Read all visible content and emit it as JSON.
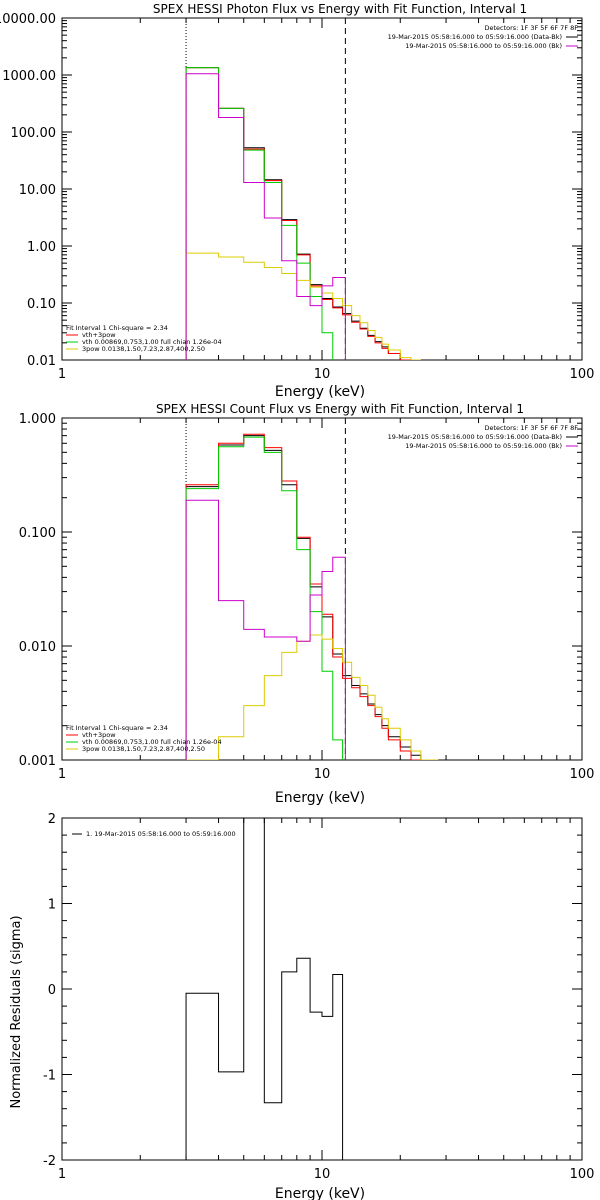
{
  "chart_data": [
    {
      "type": "line",
      "title": "SPEX HESSI Photon Flux vs Energy with Fit Function, Interval 1",
      "xlabel": "Energy (keV)",
      "ylabel": "",
      "xscale": "log",
      "yscale": "log",
      "xlim": [
        1,
        100
      ],
      "ylim": [
        0.01,
        10000
      ],
      "x_ticks": [
        {
          "value": 1,
          "label": "1"
        },
        {
          "value": 10,
          "label": "10"
        },
        {
          "value": 100,
          "label": "100"
        }
      ],
      "y_ticks": [
        {
          "value": 0.01,
          "label": "0.01"
        },
        {
          "value": 0.1,
          "label": "0.10"
        },
        {
          "value": 1,
          "label": "1.00"
        },
        {
          "value": 10,
          "label": "10.00"
        },
        {
          "value": 100,
          "label": "100.00"
        },
        {
          "value": 1000,
          "label": "1000.00"
        },
        {
          "value": 10000,
          "label": "10000.00"
        }
      ],
      "vlines": [
        {
          "x": 3,
          "style": "dotted"
        },
        {
          "x": 12.3,
          "style": "dashed"
        }
      ],
      "legend_top": {
        "header": "Detectors: 1F 3F 5F 6F 7F 8F",
        "items": [
          {
            "text": "19-Mar-2015 05:58:16.000 to 05:59:16.000 (Data-Bk)",
            "color": "#000000"
          },
          {
            "text": "19-Mar-2015 05:58:16.000 to 05:59:16.000 (Bk)",
            "color": "#cc00cc"
          }
        ]
      },
      "legend_bottom": {
        "header": "Fit Interval 1   Chi-square = 2.34",
        "items": [
          {
            "text": "vth+3pow",
            "color": "#ff0000"
          },
          {
            "text": "vth 0.00869,0.753,1.00  full chian 1.26e-04",
            "color": "#00cc00"
          },
          {
            "text": "3pow 0.0138,1.50,7.23,2.87,400,2.50",
            "color": "#ddcc00"
          }
        ]
      },
      "series": [
        {
          "color": "#000000",
          "edges": [
            3,
            4,
            5,
            6,
            7,
            8,
            9,
            10,
            11,
            12,
            13,
            14,
            15,
            16,
            17,
            18,
            20,
            22,
            24
          ],
          "values": [
            1350,
            260,
            53,
            14.5,
            2.9,
            0.72,
            0.21,
            0.12,
            0.085,
            0.065,
            0.048,
            0.036,
            0.027,
            0.021,
            0.017,
            0.013,
            0.01,
            0.01
          ]
        },
        {
          "color": "#ff0000",
          "edges": [
            3,
            4,
            5,
            6,
            7,
            8,
            9,
            10,
            11,
            12,
            13,
            14,
            15,
            16,
            17,
            18,
            20,
            22,
            24
          ],
          "values": [
            1350,
            260,
            50,
            14,
            2.8,
            0.7,
            0.2,
            0.115,
            0.082,
            0.062,
            0.046,
            0.035,
            0.026,
            0.02,
            0.016,
            0.013,
            0.01,
            0.01
          ]
        },
        {
          "color": "#00cc00",
          "edges": [
            3,
            4,
            5,
            6,
            7,
            8,
            9,
            10,
            11
          ],
          "values": [
            1350,
            260,
            48,
            13,
            2.3,
            0.5,
            0.13,
            0.03
          ]
        },
        {
          "color": "#ddcc00",
          "edges": [
            3,
            4,
            5,
            6,
            7,
            8,
            9,
            10,
            11,
            12,
            13,
            14,
            15,
            16,
            17,
            18,
            20,
            22,
            24
          ],
          "values": [
            0.75,
            0.64,
            0.52,
            0.42,
            0.33,
            0.25,
            0.19,
            0.15,
            0.12,
            0.09,
            0.06,
            0.045,
            0.033,
            0.025,
            0.019,
            0.015,
            0.011,
            0.01
          ]
        },
        {
          "color": "#cc00cc",
          "edges": [
            3,
            4,
            5,
            6,
            7,
            8,
            9,
            10,
            11,
            12.3
          ],
          "values": [
            1050,
            180,
            13,
            3.1,
            0.55,
            0.13,
            0.09,
            0.2,
            0.28
          ]
        }
      ]
    },
    {
      "type": "line",
      "title": "SPEX HESSI Count Flux vs Energy with Fit Function, Interval 1",
      "xlabel": "Energy (keV)",
      "ylabel": "",
      "xscale": "log",
      "yscale": "log",
      "xlim": [
        1,
        100
      ],
      "ylim": [
        0.001,
        1
      ],
      "x_ticks": [
        {
          "value": 1,
          "label": "1"
        },
        {
          "value": 10,
          "label": "10"
        },
        {
          "value": 100,
          "label": "100"
        }
      ],
      "y_ticks": [
        {
          "value": 0.001,
          "label": "0.001"
        },
        {
          "value": 0.01,
          "label": "0.010"
        },
        {
          "value": 0.1,
          "label": "0.100"
        },
        {
          "value": 1,
          "label": "1.000"
        }
      ],
      "vlines": [
        {
          "x": 3,
          "style": "dotted"
        },
        {
          "x": 12.3,
          "style": "dashed"
        }
      ],
      "legend_top": {
        "header": "Detectors: 1F 3F 5F 6F 7F 8F",
        "items": [
          {
            "text": "19-Mar-2015 05:58:16.000 to 05:59:16.000 (Data-Bk)",
            "color": "#000000"
          },
          {
            "text": "19-Mar-2015 05:58:16.000 to 05:59:16.000 (Bk)",
            "color": "#cc00cc"
          }
        ]
      },
      "legend_bottom": {
        "header": "Fit Interval 1   Chi-square = 2.34",
        "items": [
          {
            "text": "vth+3pow",
            "color": "#ff0000"
          },
          {
            "text": "vth 0.00869,0.753,1.00  full chian 1.26e-04",
            "color": "#00cc00"
          },
          {
            "text": "3pow 0.0138,1.50,7.23,2.87,400,2.50",
            "color": "#ddcc00"
          }
        ]
      },
      "series": [
        {
          "color": "#000000",
          "edges": [
            3,
            4,
            5,
            6,
            7,
            8,
            9,
            10,
            11,
            12,
            13,
            14,
            15,
            16,
            17,
            18,
            20,
            22,
            24,
            26,
            28
          ],
          "values": [
            0.25,
            0.58,
            0.7,
            0.52,
            0.26,
            0.088,
            0.033,
            0.018,
            0.0085,
            0.0055,
            0.0045,
            0.0038,
            0.0031,
            0.0025,
            0.002,
            0.0016,
            0.0013,
            0.0011,
            0.001,
            0.001
          ]
        },
        {
          "color": "#ff0000",
          "edges": [
            3,
            4,
            5,
            6,
            7,
            8,
            9,
            10,
            11,
            12,
            13,
            14,
            15,
            16,
            17,
            18,
            20,
            22,
            24,
            26,
            28
          ],
          "values": [
            0.26,
            0.6,
            0.72,
            0.55,
            0.28,
            0.09,
            0.035,
            0.019,
            0.008,
            0.0052,
            0.0043,
            0.0036,
            0.003,
            0.0024,
            0.0019,
            0.0015,
            0.0012,
            0.001,
            0.001,
            0.001
          ]
        },
        {
          "color": "#00cc00",
          "edges": [
            3,
            4,
            5,
            6,
            7,
            8,
            9,
            10,
            11,
            12
          ],
          "values": [
            0.24,
            0.56,
            0.68,
            0.5,
            0.23,
            0.07,
            0.02,
            0.006,
            0.0015
          ]
        },
        {
          "color": "#ddcc00",
          "edges": [
            3,
            4,
            5,
            6,
            7,
            8,
            9,
            10,
            11,
            12,
            13,
            14,
            15,
            16,
            17,
            18,
            20,
            22,
            24,
            26,
            28
          ],
          "values": [
            0.001,
            0.0016,
            0.003,
            0.0055,
            0.0088,
            0.011,
            0.0125,
            0.0115,
            0.0095,
            0.0072,
            0.0053,
            0.0045,
            0.0037,
            0.0029,
            0.0023,
            0.0019,
            0.0015,
            0.0012,
            0.001,
            0.001
          ]
        },
        {
          "color": "#cc00cc",
          "edges": [
            3,
            4,
            5,
            6,
            7,
            8,
            9,
            10,
            11,
            12.3
          ],
          "values": [
            0.19,
            0.025,
            0.014,
            0.012,
            0.012,
            0.011,
            0.028,
            0.045,
            0.06
          ]
        }
      ]
    },
    {
      "type": "line",
      "title": "",
      "xlabel": "Energy (keV)",
      "ylabel": "Normalized Residuals (sigma)",
      "xscale": "log",
      "yscale": "linear",
      "xlim": [
        1,
        100
      ],
      "ylim": [
        -2,
        2
      ],
      "x_ticks": [
        {
          "value": 1,
          "label": "1"
        },
        {
          "value": 10,
          "label": "10"
        },
        {
          "value": 100,
          "label": "100"
        }
      ],
      "y_ticks": [
        {
          "value": -2,
          "label": "-2"
        },
        {
          "value": -1,
          "label": "-1"
        },
        {
          "value": 0,
          "label": "0"
        },
        {
          "value": 1,
          "label": "1"
        },
        {
          "value": 2,
          "label": "2"
        }
      ],
      "vlines": [],
      "legend_top_left": {
        "items": [
          {
            "text": "1. 19-Mar-2015 05:58:16.000 to 05:59:16.000",
            "color": "#000000"
          }
        ]
      },
      "series": [
        {
          "color": "#000000",
          "edges": [
            3,
            4,
            5,
            6,
            7,
            8,
            9,
            10,
            11,
            12
          ],
          "values": [
            -0.05,
            -0.97,
            2.02,
            -1.33,
            0.2,
            0.36,
            -0.27,
            -0.32,
            0.17
          ],
          "drop_to": -2
        }
      ]
    }
  ]
}
